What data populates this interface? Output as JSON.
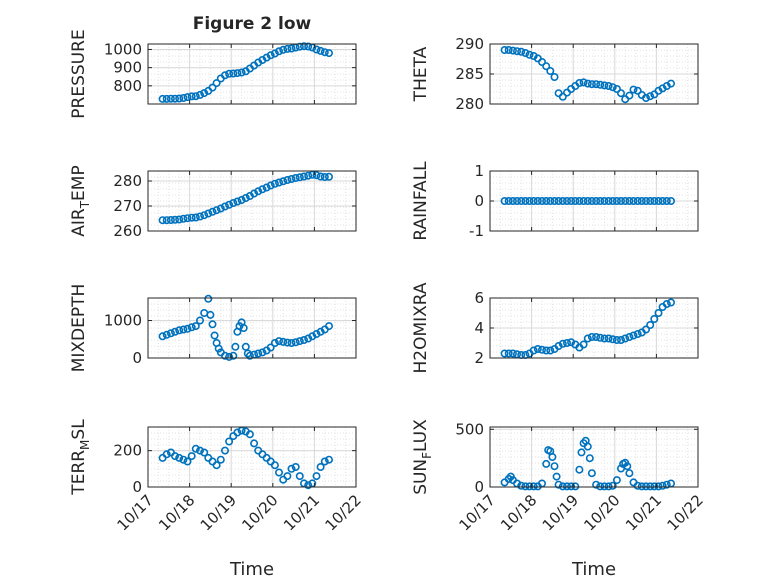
{
  "figure": {
    "title": "Figure 2 low",
    "xlabel": "Time",
    "x_tick_labels": [
      "10/17",
      "10/18",
      "10/19",
      "10/20",
      "10/21",
      "10/22"
    ]
  },
  "colors": {
    "marker": "#0072bd",
    "grid": "#d9d9d9",
    "axis": "#262626",
    "background": "#ffffff"
  },
  "chart_data": [
    {
      "type": "scatter",
      "ylabel": "PRESSURE",
      "ylim": [
        700,
        1030
      ],
      "yticks": [
        800,
        900,
        1000
      ],
      "xlim": [
        "10/17",
        "10/22"
      ],
      "grid": true,
      "x": [
        0.35,
        0.45,
        0.55,
        0.65,
        0.75,
        0.85,
        0.95,
        1.05,
        1.15,
        1.25,
        1.35,
        1.45,
        1.55,
        1.65,
        1.75,
        1.85,
        1.95,
        2.05,
        2.15,
        2.25,
        2.35,
        2.45,
        2.55,
        2.65,
        2.75,
        2.85,
        2.95,
        3.05,
        3.15,
        3.25,
        3.35,
        3.45,
        3.55,
        3.65,
        3.75,
        3.85,
        3.95,
        4.05,
        4.15,
        4.25,
        4.35
      ],
      "values": [
        728,
        728,
        729,
        729,
        730,
        733,
        738,
        742,
        743,
        750,
        760,
        772,
        790,
        815,
        840,
        858,
        866,
        868,
        870,
        873,
        880,
        895,
        912,
        928,
        942,
        955,
        968,
        978,
        990,
        998,
        1003,
        1005,
        1010,
        1015,
        1018,
        1016,
        1011,
        1000,
        992,
        985,
        980
      ]
    },
    {
      "type": "scatter",
      "ylabel": "AIR_TEMP",
      "ylim": [
        260,
        284
      ],
      "yticks": [
        260,
        270,
        280
      ],
      "xlim": [
        "10/17",
        "10/22"
      ],
      "grid": true,
      "x": [
        0.35,
        0.45,
        0.55,
        0.65,
        0.75,
        0.85,
        0.95,
        1.05,
        1.15,
        1.25,
        1.35,
        1.45,
        1.55,
        1.65,
        1.75,
        1.85,
        1.95,
        2.05,
        2.15,
        2.25,
        2.35,
        2.45,
        2.55,
        2.65,
        2.75,
        2.85,
        2.95,
        3.05,
        3.15,
        3.25,
        3.35,
        3.45,
        3.55,
        3.65,
        3.75,
        3.85,
        3.95,
        4.05,
        4.15,
        4.25,
        4.35
      ],
      "values": [
        264.3,
        264.3,
        264.4,
        264.5,
        264.6,
        264.9,
        265.1,
        265.3,
        265.4,
        265.8,
        266.3,
        267,
        267.7,
        268.3,
        269,
        269.8,
        270.5,
        271.2,
        271.8,
        272.4,
        273.2,
        274,
        275,
        275.9,
        276.7,
        277.4,
        278.2,
        278.9,
        279.4,
        279.9,
        280.4,
        280.8,
        281.2,
        281.5,
        281.8,
        282.1,
        282.5,
        282.3,
        281.8,
        281.6,
        281.7
      ]
    },
    {
      "type": "scatter",
      "ylabel": "MIXDEPTH",
      "ylim": [
        0,
        1600
      ],
      "yticks": [
        0,
        1000
      ],
      "xlim": [
        "10/17",
        "10/22"
      ],
      "grid": true,
      "x": [
        0.35,
        0.45,
        0.55,
        0.65,
        0.75,
        0.85,
        0.95,
        1.05,
        1.15,
        1.25,
        1.35,
        1.45,
        1.5,
        1.55,
        1.6,
        1.65,
        1.7,
        1.75,
        1.85,
        1.95,
        2.05,
        2.1,
        2.15,
        2.2,
        2.25,
        2.3,
        2.35,
        2.4,
        2.45,
        2.55,
        2.65,
        2.75,
        2.85,
        2.95,
        3.05,
        3.15,
        3.25,
        3.35,
        3.45,
        3.55,
        3.65,
        3.75,
        3.85,
        3.95,
        4.05,
        4.15,
        4.25,
        4.35
      ],
      "values": [
        580,
        620,
        660,
        700,
        740,
        760,
        780,
        820,
        850,
        1000,
        1200,
        1580,
        1150,
        900,
        600,
        400,
        250,
        150,
        60,
        30,
        60,
        300,
        700,
        850,
        950,
        800,
        300,
        120,
        60,
        90,
        120,
        150,
        200,
        280,
        400,
        450,
        430,
        410,
        400,
        420,
        450,
        480,
        520,
        580,
        640,
        700,
        760,
        850
      ]
    },
    {
      "type": "scatter",
      "ylabel": "TERR_MSL",
      "ylim": [
        0,
        330
      ],
      "yticks": [
        0,
        200
      ],
      "xlim": [
        "10/17",
        "10/22"
      ],
      "grid": true,
      "x": [
        0.35,
        0.45,
        0.55,
        0.65,
        0.75,
        0.85,
        0.95,
        1.05,
        1.15,
        1.25,
        1.35,
        1.45,
        1.55,
        1.65,
        1.75,
        1.85,
        1.95,
        2.05,
        2.15,
        2.25,
        2.35,
        2.45,
        2.55,
        2.65,
        2.75,
        2.85,
        2.95,
        3.05,
        3.15,
        3.25,
        3.35,
        3.45,
        3.55,
        3.65,
        3.75,
        3.85,
        3.95,
        4.05,
        4.15,
        4.25,
        4.35
      ],
      "values": [
        160,
        180,
        190,
        170,
        160,
        150,
        140,
        170,
        210,
        200,
        190,
        160,
        140,
        120,
        150,
        200,
        250,
        280,
        300,
        310,
        305,
        290,
        240,
        200,
        180,
        160,
        140,
        120,
        80,
        40,
        60,
        100,
        110,
        60,
        20,
        10,
        20,
        60,
        110,
        140,
        150
      ]
    },
    {
      "type": "scatter",
      "ylabel": "THETA",
      "ylim": [
        280,
        290
      ],
      "yticks": [
        280,
        285,
        290
      ],
      "xlim": [
        "10/17",
        "10/22"
      ],
      "grid": true,
      "x": [
        0.35,
        0.45,
        0.55,
        0.65,
        0.75,
        0.85,
        0.95,
        1.05,
        1.15,
        1.25,
        1.35,
        1.45,
        1.55,
        1.65,
        1.75,
        1.85,
        1.95,
        2.05,
        2.15,
        2.25,
        2.35,
        2.45,
        2.55,
        2.65,
        2.75,
        2.85,
        2.95,
        3.05,
        3.15,
        3.25,
        3.35,
        3.45,
        3.55,
        3.65,
        3.75,
        3.85,
        3.95,
        4.05,
        4.15,
        4.25,
        4.35
      ],
      "values": [
        289,
        289,
        288.9,
        288.8,
        288.7,
        288.5,
        288.2,
        288,
        287.6,
        287,
        286.3,
        285.5,
        284.5,
        281.8,
        281.2,
        281.9,
        282.5,
        283,
        283.5,
        283.6,
        283.4,
        283.3,
        283.3,
        283.2,
        283.1,
        283,
        282.8,
        282.5,
        281.8,
        280.8,
        281.4,
        282.4,
        282.2,
        281.5,
        281,
        281.3,
        281.6,
        282.2,
        282.6,
        283,
        283.4
      ]
    },
    {
      "type": "scatter",
      "ylabel": "RAINFALL",
      "ylim": [
        -1,
        1
      ],
      "yticks": [
        -1,
        0,
        1
      ],
      "xlim": [
        "10/17",
        "10/22"
      ],
      "grid": true,
      "x": [
        0.35,
        0.45,
        0.55,
        0.65,
        0.75,
        0.85,
        0.95,
        1.05,
        1.15,
        1.25,
        1.35,
        1.45,
        1.55,
        1.65,
        1.75,
        1.85,
        1.95,
        2.05,
        2.15,
        2.25,
        2.35,
        2.45,
        2.55,
        2.65,
        2.75,
        2.85,
        2.95,
        3.05,
        3.15,
        3.25,
        3.35,
        3.45,
        3.55,
        3.65,
        3.75,
        3.85,
        3.95,
        4.05,
        4.15,
        4.25,
        4.35
      ],
      "values": [
        0,
        0,
        0,
        0,
        0,
        0,
        0,
        0,
        0,
        0,
        0,
        0,
        0,
        0,
        0,
        0,
        0,
        0,
        0,
        0,
        0,
        0,
        0,
        0,
        0,
        0,
        0,
        0,
        0,
        0,
        0,
        0,
        0,
        0,
        0,
        0,
        0,
        0,
        0,
        0,
        0
      ]
    },
    {
      "type": "scatter",
      "ylabel": "H2OMIXRA",
      "ylim": [
        2,
        6
      ],
      "yticks": [
        2,
        4,
        6
      ],
      "xlim": [
        "10/17",
        "10/22"
      ],
      "grid": true,
      "x": [
        0.35,
        0.45,
        0.55,
        0.65,
        0.75,
        0.85,
        0.95,
        1.05,
        1.15,
        1.25,
        1.35,
        1.45,
        1.55,
        1.65,
        1.75,
        1.85,
        1.95,
        2.05,
        2.15,
        2.25,
        2.35,
        2.45,
        2.55,
        2.65,
        2.75,
        2.85,
        2.95,
        3.05,
        3.15,
        3.25,
        3.35,
        3.45,
        3.55,
        3.65,
        3.75,
        3.85,
        3.95,
        4.05,
        4.15,
        4.25,
        4.35
      ],
      "values": [
        2.3,
        2.3,
        2.3,
        2.25,
        2.2,
        2.2,
        2.3,
        2.5,
        2.6,
        2.55,
        2.5,
        2.5,
        2.6,
        2.8,
        2.95,
        3.0,
        3.05,
        2.9,
        2.7,
        2.9,
        3.3,
        3.4,
        3.4,
        3.35,
        3.3,
        3.3,
        3.25,
        3.2,
        3.2,
        3.3,
        3.4,
        3.5,
        3.6,
        3.7,
        3.9,
        4.2,
        4.6,
        5.0,
        5.4,
        5.6,
        5.7
      ]
    },
    {
      "type": "scatter",
      "ylabel": "SUN_FLUX",
      "ylim": [
        0,
        520
      ],
      "yticks": [
        0,
        500
      ],
      "xlim": [
        "10/17",
        "10/22"
      ],
      "grid": true,
      "x": [
        0.35,
        0.45,
        0.5,
        0.55,
        0.65,
        0.75,
        0.85,
        0.95,
        1.05,
        1.15,
        1.25,
        1.35,
        1.4,
        1.45,
        1.5,
        1.55,
        1.6,
        1.65,
        1.75,
        1.85,
        1.95,
        2.05,
        2.15,
        2.2,
        2.25,
        2.3,
        2.35,
        2.4,
        2.45,
        2.55,
        2.65,
        2.75,
        2.85,
        2.95,
        3.05,
        3.15,
        3.2,
        3.25,
        3.3,
        3.35,
        3.45,
        3.55,
        3.65,
        3.75,
        3.85,
        3.95,
        4.05,
        4.15,
        4.25,
        4.35
      ],
      "values": [
        40,
        70,
        90,
        60,
        30,
        10,
        5,
        5,
        5,
        5,
        30,
        200,
        320,
        310,
        260,
        180,
        90,
        20,
        5,
        5,
        5,
        5,
        150,
        300,
        380,
        400,
        350,
        250,
        120,
        20,
        5,
        5,
        5,
        10,
        60,
        160,
        200,
        210,
        180,
        120,
        40,
        10,
        5,
        5,
        5,
        5,
        5,
        10,
        20,
        30
      ]
    }
  ]
}
